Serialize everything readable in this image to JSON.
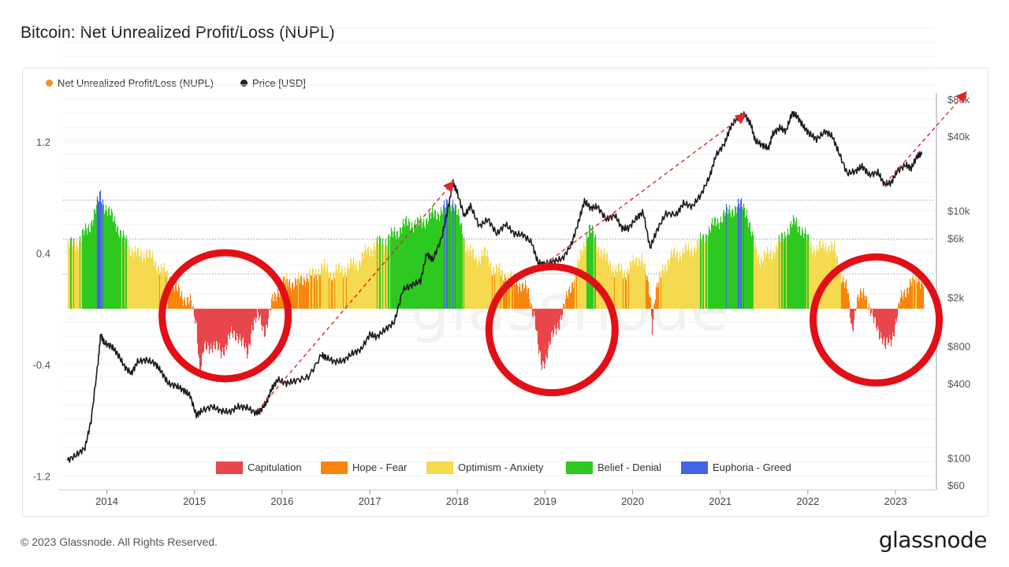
{
  "page": {
    "title": "Bitcoin: Net Unrealized Profit/Loss (NUPL)",
    "footer": "© 2023 Glassnode. All Rights Reserved.",
    "logo": "glassnode",
    "watermark": "glassnode"
  },
  "legend_top": [
    {
      "label": "Net Unrealized Profit/Loss (NUPL)",
      "color": "#f7931a"
    },
    {
      "label": "Price [USD]",
      "color": "#222222"
    }
  ],
  "chart_data": {
    "type": "area",
    "title": "Bitcoin: Net Unrealized Profit/Loss (NUPL)",
    "x_ticks": [
      "2014",
      "2015",
      "2016",
      "2017",
      "2018",
      "2019",
      "2020",
      "2021",
      "2022",
      "2023"
    ],
    "x_range": [
      2013.5,
      2023.45
    ],
    "y_left": {
      "ticks": [
        "1.2",
        "0.4",
        "-0.4",
        "-1.2"
      ],
      "tick_values": [
        1.2,
        0.4,
        -0.4,
        -1.2
      ],
      "range": [
        -1.3,
        1.55
      ]
    },
    "y_right": {
      "ticks": [
        "$80k",
        "$40k",
        "$10k",
        "$6k",
        "$2k",
        "$800",
        "$400",
        "$100",
        "$60"
      ],
      "tick_values": [
        80000,
        40000,
        10000,
        6000,
        2000,
        800,
        400,
        100,
        60
      ],
      "range": [
        55,
        90000
      ],
      "scale": "log"
    },
    "zones": [
      {
        "label": "Capitulation",
        "color": "#e8464a",
        "from": -1.3,
        "to": 0
      },
      {
        "label": "Hope - Fear",
        "color": "#f7850f",
        "from": 0,
        "to": 0.25
      },
      {
        "label": "Optimism - Anxiety",
        "color": "#f5d94e",
        "from": 0.25,
        "to": 0.5
      },
      {
        "label": "Belief - Denial",
        "color": "#2ec920",
        "from": 0.5,
        "to": 0.75
      },
      {
        "label": "Euphoria - Greed",
        "color": "#4565e6",
        "from": 0.75,
        "to": 1.55
      }
    ],
    "nupl_series": [
      [
        2013.55,
        0.44
      ],
      [
        2013.7,
        0.5
      ],
      [
        2013.8,
        0.6
      ],
      [
        2013.88,
        0.72
      ],
      [
        2013.92,
        0.82
      ],
      [
        2013.96,
        0.76
      ],
      [
        2014.02,
        0.68
      ],
      [
        2014.1,
        0.62
      ],
      [
        2014.18,
        0.5
      ],
      [
        2014.25,
        0.45
      ],
      [
        2014.35,
        0.38
      ],
      [
        2014.45,
        0.4
      ],
      [
        2014.55,
        0.33
      ],
      [
        2014.65,
        0.26
      ],
      [
        2014.72,
        0.22
      ],
      [
        2014.8,
        0.12
      ],
      [
        2014.88,
        0.08
      ],
      [
        2014.95,
        0.04
      ],
      [
        2015.02,
        -0.1
      ],
      [
        2015.06,
        -0.48
      ],
      [
        2015.1,
        -0.3
      ],
      [
        2015.2,
        -0.25
      ],
      [
        2015.3,
        -0.32
      ],
      [
        2015.4,
        -0.2
      ],
      [
        2015.5,
        -0.18
      ],
      [
        2015.6,
        -0.34
      ],
      [
        2015.65,
        -0.12
      ],
      [
        2015.72,
        -0.06
      ],
      [
        2015.8,
        -0.15
      ],
      [
        2015.85,
        -0.05
      ],
      [
        2015.88,
        0.04
      ],
      [
        2015.95,
        0.14
      ],
      [
        2016.05,
        0.2
      ],
      [
        2016.15,
        0.18
      ],
      [
        2016.25,
        0.22
      ],
      [
        2016.35,
        0.24
      ],
      [
        2016.45,
        0.3
      ],
      [
        2016.55,
        0.26
      ],
      [
        2016.65,
        0.27
      ],
      [
        2016.75,
        0.3
      ],
      [
        2016.85,
        0.32
      ],
      [
        2016.95,
        0.4
      ],
      [
        2017.05,
        0.45
      ],
      [
        2017.15,
        0.48
      ],
      [
        2017.25,
        0.52
      ],
      [
        2017.35,
        0.58
      ],
      [
        2017.45,
        0.62
      ],
      [
        2017.55,
        0.6
      ],
      [
        2017.65,
        0.65
      ],
      [
        2017.75,
        0.68
      ],
      [
        2017.85,
        0.72
      ],
      [
        2017.95,
        0.78
      ],
      [
        2018.02,
        0.62
      ],
      [
        2018.1,
        0.45
      ],
      [
        2018.2,
        0.35
      ],
      [
        2018.3,
        0.4
      ],
      [
        2018.4,
        0.3
      ],
      [
        2018.5,
        0.25
      ],
      [
        2018.6,
        0.22
      ],
      [
        2018.7,
        0.18
      ],
      [
        2018.8,
        0.12
      ],
      [
        2018.88,
        -0.05
      ],
      [
        2018.92,
        -0.3
      ],
      [
        2018.96,
        -0.42
      ],
      [
        2019.0,
        -0.35
      ],
      [
        2019.05,
        -0.25
      ],
      [
        2019.1,
        -0.18
      ],
      [
        2019.15,
        -0.1
      ],
      [
        2019.22,
        0.02
      ],
      [
        2019.3,
        0.18
      ],
      [
        2019.38,
        0.32
      ],
      [
        2019.45,
        0.48
      ],
      [
        2019.5,
        0.58
      ],
      [
        2019.6,
        0.45
      ],
      [
        2019.7,
        0.35
      ],
      [
        2019.8,
        0.28
      ],
      [
        2019.9,
        0.26
      ],
      [
        2020.0,
        0.32
      ],
      [
        2020.1,
        0.38
      ],
      [
        2020.2,
        0.08
      ],
      [
        2020.22,
        -0.12
      ],
      [
        2020.25,
        0.1
      ],
      [
        2020.35,
        0.3
      ],
      [
        2020.45,
        0.38
      ],
      [
        2020.55,
        0.4
      ],
      [
        2020.65,
        0.42
      ],
      [
        2020.75,
        0.46
      ],
      [
        2020.85,
        0.55
      ],
      [
        2020.95,
        0.62
      ],
      [
        2021.05,
        0.68
      ],
      [
        2021.15,
        0.72
      ],
      [
        2021.25,
        0.74
      ],
      [
        2021.3,
        0.7
      ],
      [
        2021.38,
        0.45
      ],
      [
        2021.45,
        0.36
      ],
      [
        2021.55,
        0.38
      ],
      [
        2021.65,
        0.45
      ],
      [
        2021.75,
        0.55
      ],
      [
        2021.85,
        0.62
      ],
      [
        2021.92,
        0.58
      ],
      [
        2022.0,
        0.48
      ],
      [
        2022.1,
        0.42
      ],
      [
        2022.2,
        0.46
      ],
      [
        2022.3,
        0.42
      ],
      [
        2022.4,
        0.2
      ],
      [
        2022.45,
        0.12
      ],
      [
        2022.5,
        -0.15
      ],
      [
        2022.55,
        0.05
      ],
      [
        2022.65,
        0.12
      ],
      [
        2022.75,
        -0.1
      ],
      [
        2022.85,
        -0.2
      ],
      [
        2022.88,
        -0.28
      ],
      [
        2022.95,
        -0.22
      ],
      [
        2023.05,
        0.05
      ],
      [
        2023.15,
        0.18
      ],
      [
        2023.25,
        0.22
      ],
      [
        2023.32,
        0.2
      ]
    ],
    "price_series": [
      [
        2013.55,
        95
      ],
      [
        2013.65,
        105
      ],
      [
        2013.75,
        120
      ],
      [
        2013.82,
        200
      ],
      [
        2013.9,
        600
      ],
      [
        2013.93,
        1000
      ],
      [
        2013.97,
        850
      ],
      [
        2014.05,
        800
      ],
      [
        2014.12,
        700
      ],
      [
        2014.2,
        550
      ],
      [
        2014.28,
        480
      ],
      [
        2014.35,
        600
      ],
      [
        2014.45,
        620
      ],
      [
        2014.55,
        580
      ],
      [
        2014.62,
        500
      ],
      [
        2014.7,
        400
      ],
      [
        2014.8,
        380
      ],
      [
        2014.88,
        350
      ],
      [
        2014.95,
        320
      ],
      [
        2015.02,
        220
      ],
      [
        2015.08,
        240
      ],
      [
        2015.2,
        260
      ],
      [
        2015.3,
        240
      ],
      [
        2015.4,
        235
      ],
      [
        2015.5,
        260
      ],
      [
        2015.6,
        255
      ],
      [
        2015.7,
        230
      ],
      [
        2015.75,
        240
      ],
      [
        2015.82,
        280
      ],
      [
        2015.88,
        360
      ],
      [
        2015.95,
        430
      ],
      [
        2016.05,
        400
      ],
      [
        2016.15,
        420
      ],
      [
        2016.3,
        450
      ],
      [
        2016.45,
        680
      ],
      [
        2016.5,
        650
      ],
      [
        2016.6,
        600
      ],
      [
        2016.7,
        610
      ],
      [
        2016.8,
        700
      ],
      [
        2016.9,
        750
      ],
      [
        2017.0,
        1000
      ],
      [
        2017.08,
        950
      ],
      [
        2017.18,
        1100
      ],
      [
        2017.28,
        1250
      ],
      [
        2017.38,
        2300
      ],
      [
        2017.48,
        2500
      ],
      [
        2017.58,
        2700
      ],
      [
        2017.65,
        4500
      ],
      [
        2017.72,
        4000
      ],
      [
        2017.82,
        6000
      ],
      [
        2017.9,
        11000
      ],
      [
        2017.95,
        17000
      ],
      [
        2018.0,
        14000
      ],
      [
        2018.08,
        9000
      ],
      [
        2018.15,
        11000
      ],
      [
        2018.25,
        7500
      ],
      [
        2018.35,
        8500
      ],
      [
        2018.45,
        6500
      ],
      [
        2018.55,
        7800
      ],
      [
        2018.65,
        6500
      ],
      [
        2018.75,
        6400
      ],
      [
        2018.85,
        5500
      ],
      [
        2018.92,
        3800
      ],
      [
        2019.0,
        3700
      ],
      [
        2019.1,
        3900
      ],
      [
        2019.2,
        4100
      ],
      [
        2019.3,
        5300
      ],
      [
        2019.38,
        8000
      ],
      [
        2019.45,
        12000
      ],
      [
        2019.52,
        10500
      ],
      [
        2019.6,
        10800
      ],
      [
        2019.7,
        8500
      ],
      [
        2019.8,
        9200
      ],
      [
        2019.88,
        7200
      ],
      [
        2019.95,
        7200
      ],
      [
        2020.05,
        8800
      ],
      [
        2020.12,
        9800
      ],
      [
        2020.2,
        5000
      ],
      [
        2020.28,
        7000
      ],
      [
        2020.38,
        9500
      ],
      [
        2020.5,
        9300
      ],
      [
        2020.58,
        11500
      ],
      [
        2020.68,
        10800
      ],
      [
        2020.78,
        13500
      ],
      [
        2020.88,
        19000
      ],
      [
        2020.95,
        28000
      ],
      [
        2021.05,
        35000
      ],
      [
        2021.12,
        48000
      ],
      [
        2021.2,
        57000
      ],
      [
        2021.28,
        60000
      ],
      [
        2021.35,
        50000
      ],
      [
        2021.4,
        37000
      ],
      [
        2021.48,
        34000
      ],
      [
        2021.55,
        32000
      ],
      [
        2021.6,
        42000
      ],
      [
        2021.68,
        47000
      ],
      [
        2021.75,
        44000
      ],
      [
        2021.82,
        62000
      ],
      [
        2021.88,
        58000
      ],
      [
        2021.95,
        48000
      ],
      [
        2022.02,
        42000
      ],
      [
        2022.1,
        38000
      ],
      [
        2022.2,
        44000
      ],
      [
        2022.28,
        40000
      ],
      [
        2022.35,
        30000
      ],
      [
        2022.45,
        20000
      ],
      [
        2022.55,
        21000
      ],
      [
        2022.62,
        23000
      ],
      [
        2022.7,
        19500
      ],
      [
        2022.8,
        20500
      ],
      [
        2022.87,
        16500
      ],
      [
        2022.95,
        16800
      ],
      [
        2023.02,
        21000
      ],
      [
        2023.12,
        23500
      ],
      [
        2023.18,
        22000
      ],
      [
        2023.25,
        28000
      ],
      [
        2023.3,
        28500
      ]
    ],
    "annotations": [
      {
        "type": "circle",
        "label": "capitulation-2015",
        "x": 2015.35,
        "y": -0.05,
        "r_years": 0.72
      },
      {
        "type": "circle",
        "label": "capitulation-2019",
        "x": 2019.08,
        "y": -0.15,
        "r_years": 0.72
      },
      {
        "type": "circle",
        "label": "capitulation-2022",
        "x": 2022.78,
        "y": -0.08,
        "r_years": 0.72
      },
      {
        "type": "arrow",
        "from": [
          2015.72,
          240
        ],
        "to": [
          2017.95,
          17000
        ]
      },
      {
        "type": "arrow",
        "from": [
          2019.0,
          3700
        ],
        "to": [
          2021.28,
          60000
        ]
      },
      {
        "type": "arrow",
        "from": [
          2022.88,
          16500
        ],
        "to": [
          2023.8,
          90000
        ]
      }
    ],
    "legend_bottom_position": "bottom-center"
  }
}
